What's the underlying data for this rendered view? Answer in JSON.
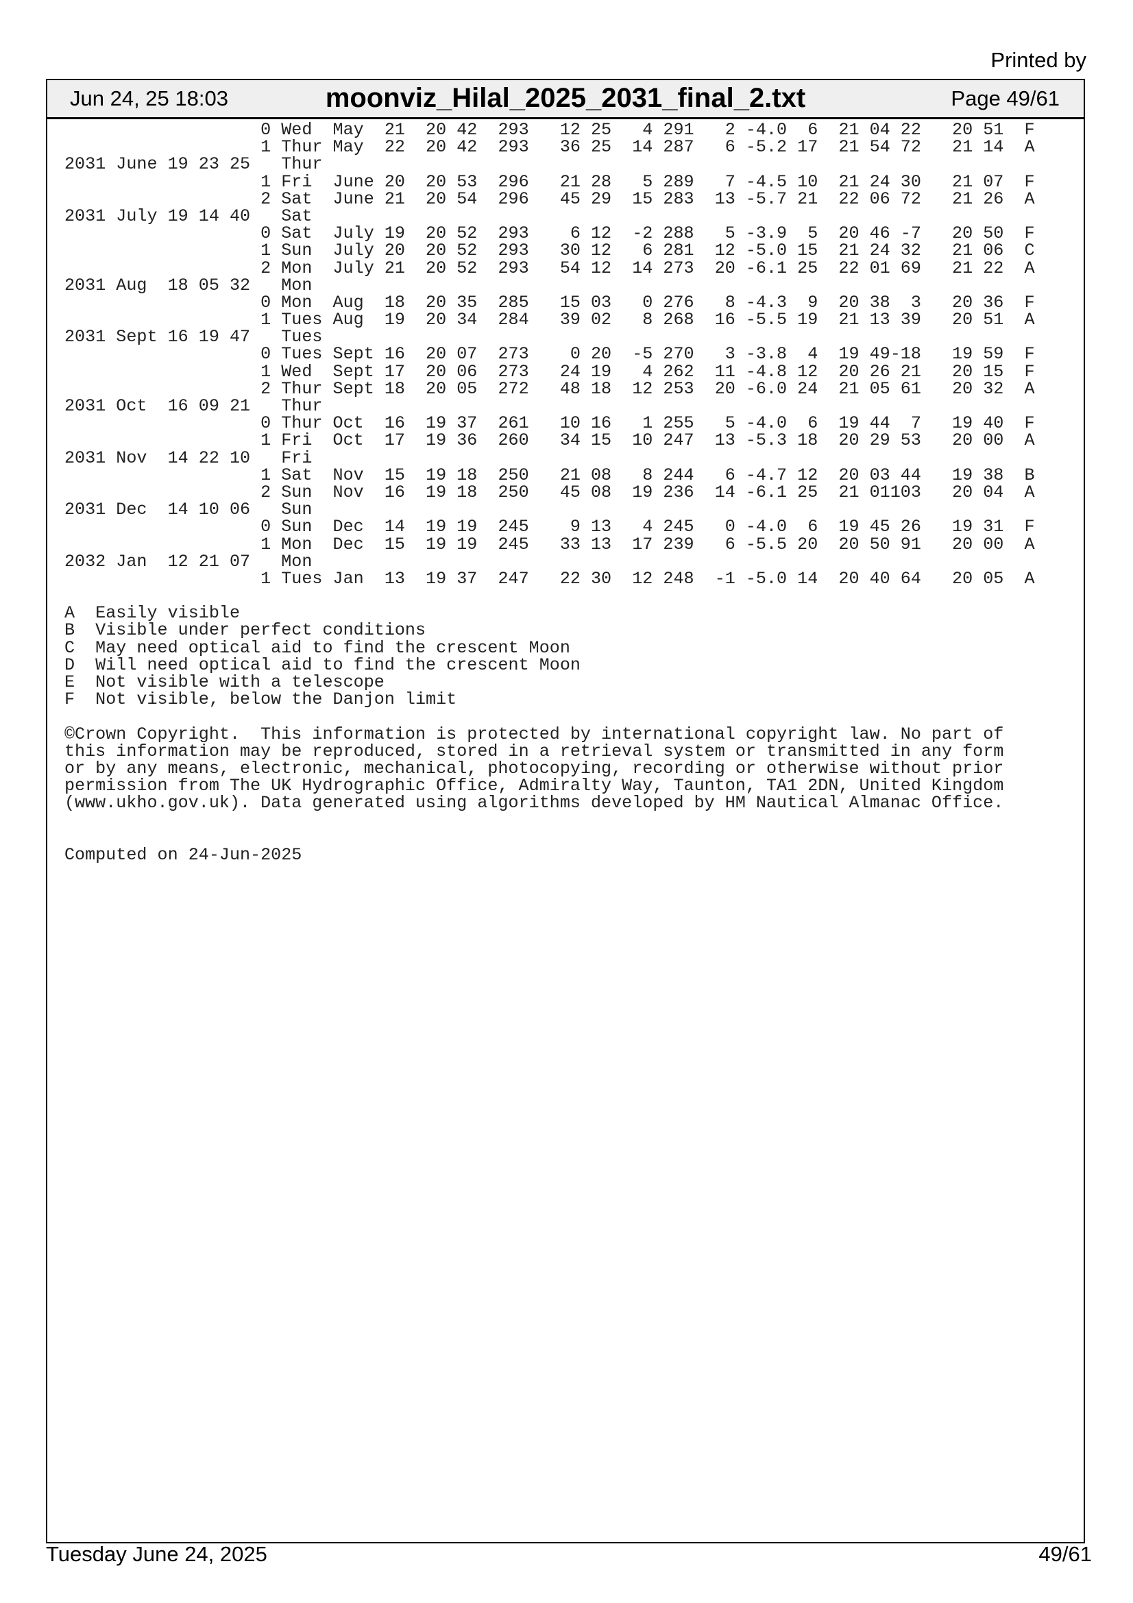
{
  "printed_by": "Printed by",
  "header": {
    "date": "Jun 24, 25 18:03",
    "title": "moonviz_Hilal_2025_2031_final_2.txt",
    "page": "Page 49/61"
  },
  "table": [
    {
      "type": "data",
      "f": [
        "0",
        "Wed",
        "May",
        "21",
        "20 42",
        "293",
        "12 25",
        "4",
        "291",
        "2",
        "-4.0",
        "6",
        "21 04",
        "22",
        "20 51",
        "F"
      ]
    },
    {
      "type": "data",
      "f": [
        "1",
        "Thur",
        "May",
        "22",
        "20 42",
        "293",
        "36 25",
        "14",
        "287",
        "6",
        "-5.2",
        "17",
        "21 54",
        "72",
        "21 14",
        "A"
      ]
    },
    {
      "type": "date",
      "label": "2031 June 19 23 25",
      "day": "Thur"
    },
    {
      "type": "data",
      "f": [
        "1",
        "Fri",
        "June",
        "20",
        "20 53",
        "296",
        "21 28",
        "5",
        "289",
        "7",
        "-4.5",
        "10",
        "21 24",
        "30",
        "21 07",
        "F"
      ]
    },
    {
      "type": "data",
      "f": [
        "2",
        "Sat",
        "June",
        "21",
        "20 54",
        "296",
        "45 29",
        "15",
        "283",
        "13",
        "-5.7",
        "21",
        "22 06",
        "72",
        "21 26",
        "A"
      ]
    },
    {
      "type": "date",
      "label": "2031 July 19 14 40",
      "day": "Sat"
    },
    {
      "type": "data",
      "f": [
        "0",
        "Sat",
        "July",
        "19",
        "20 52",
        "293",
        "6 12",
        "-2",
        "288",
        "5",
        "-3.9",
        "5",
        "20 46",
        "-7",
        "20 50",
        "F"
      ]
    },
    {
      "type": "data",
      "f": [
        "1",
        "Sun",
        "July",
        "20",
        "20 52",
        "293",
        "30 12",
        "6",
        "281",
        "12",
        "-5.0",
        "15",
        "21 24",
        "32",
        "21 06",
        "C"
      ]
    },
    {
      "type": "data",
      "f": [
        "2",
        "Mon",
        "July",
        "21",
        "20 52",
        "293",
        "54 12",
        "14",
        "273",
        "20",
        "-6.1",
        "25",
        "22 01",
        "69",
        "21 22",
        "A"
      ]
    },
    {
      "type": "date",
      "label": "2031 Aug  18 05 32",
      "day": "Mon"
    },
    {
      "type": "data",
      "f": [
        "0",
        "Mon",
        "Aug",
        "18",
        "20 35",
        "285",
        "15 03",
        "0",
        "276",
        "8",
        "-4.3",
        "9",
        "20 38",
        "3",
        "20 36",
        "F"
      ]
    },
    {
      "type": "data",
      "f": [
        "1",
        "Tues",
        "Aug",
        "19",
        "20 34",
        "284",
        "39 02",
        "8",
        "268",
        "16",
        "-5.5",
        "19",
        "21 13",
        "39",
        "20 51",
        "A"
      ]
    },
    {
      "type": "date",
      "label": "2031 Sept 16 19 47",
      "day": "Tues"
    },
    {
      "type": "data",
      "f": [
        "0",
        "Tues",
        "Sept",
        "16",
        "20 07",
        "273",
        "0 20",
        "-5",
        "270",
        "3",
        "-3.8",
        "4",
        "19 49",
        "-18",
        "19 59",
        "F"
      ]
    },
    {
      "type": "data",
      "f": [
        "1",
        "Wed",
        "Sept",
        "17",
        "20 06",
        "273",
        "24 19",
        "4",
        "262",
        "11",
        "-4.8",
        "12",
        "20 26",
        "21",
        "20 15",
        "F"
      ]
    },
    {
      "type": "data",
      "f": [
        "2",
        "Thur",
        "Sept",
        "18",
        "20 05",
        "272",
        "48 18",
        "12",
        "253",
        "20",
        "-6.0",
        "24",
        "21 05",
        "61",
        "20 32",
        "A"
      ]
    },
    {
      "type": "date",
      "label": "2031 Oct  16 09 21",
      "day": "Thur"
    },
    {
      "type": "data",
      "f": [
        "0",
        "Thur",
        "Oct",
        "16",
        "19 37",
        "261",
        "10 16",
        "1",
        "255",
        "5",
        "-4.0",
        "6",
        "19 44",
        "7",
        "19 40",
        "F"
      ]
    },
    {
      "type": "data",
      "f": [
        "1",
        "Fri",
        "Oct",
        "17",
        "19 36",
        "260",
        "34 15",
        "10",
        "247",
        "13",
        "-5.3",
        "18",
        "20 29",
        "53",
        "20 00",
        "A"
      ]
    },
    {
      "type": "date",
      "label": "2031 Nov  14 22 10",
      "day": "Fri"
    },
    {
      "type": "data",
      "f": [
        "1",
        "Sat",
        "Nov",
        "15",
        "19 18",
        "250",
        "21 08",
        "8",
        "244",
        "6",
        "-4.7",
        "12",
        "20 03",
        "44",
        "19 38",
        "B"
      ]
    },
    {
      "type": "data",
      "f": [
        "2",
        "Sun",
        "Nov",
        "16",
        "19 18",
        "250",
        "45 08",
        "19",
        "236",
        "14",
        "-6.1",
        "25",
        "21 01",
        "103",
        "20 04",
        "A"
      ]
    },
    {
      "type": "date",
      "label": "2031 Dec  14 10 06",
      "day": "Sun"
    },
    {
      "type": "data",
      "f": [
        "0",
        "Sun",
        "Dec",
        "14",
        "19 19",
        "245",
        "9 13",
        "4",
        "245",
        "0",
        "-4.0",
        "6",
        "19 45",
        "26",
        "19 31",
        "F"
      ]
    },
    {
      "type": "data",
      "f": [
        "1",
        "Mon",
        "Dec",
        "15",
        "19 19",
        "245",
        "33 13",
        "17",
        "239",
        "6",
        "-5.5",
        "20",
        "20 50",
        "91",
        "20 00",
        "A"
      ]
    },
    {
      "type": "date",
      "label": "2032 Jan  12 21 07",
      "day": "Mon"
    },
    {
      "type": "data",
      "f": [
        "1",
        "Tues",
        "Jan",
        "13",
        "19 37",
        "247",
        "22 30",
        "12",
        "248",
        "-1",
        "-5.0",
        "14",
        "20 40",
        "64",
        "20 05",
        "A"
      ]
    }
  ],
  "legend": [
    "A  Easily visible",
    "B  Visible under perfect conditions",
    "C  May need optical aid to find the crescent Moon",
    "D  Will need optical aid to find the crescent Moon",
    "E  Not visible with a telescope",
    "F  Not visible, below the Danjon limit"
  ],
  "copyright": [
    "©Crown Copyright.  This information is protected by international copyright law. No part of",
    "this information may be reproduced, stored in a retrieval system or transmitted in any form",
    "or by any means, electronic, mechanical, photocopying, recording or otherwise without prior",
    "permission from The UK Hydrographic Office, Admiralty Way, Taunton, TA1 2DN, United Kingdom",
    "(www.ukho.gov.uk). Data generated using algorithms developed by HM Nautical Almanac Office."
  ],
  "computed": "Computed on 24-Jun-2025",
  "footer": {
    "date": "Tuesday June 24, 2025",
    "page": "49/61"
  }
}
